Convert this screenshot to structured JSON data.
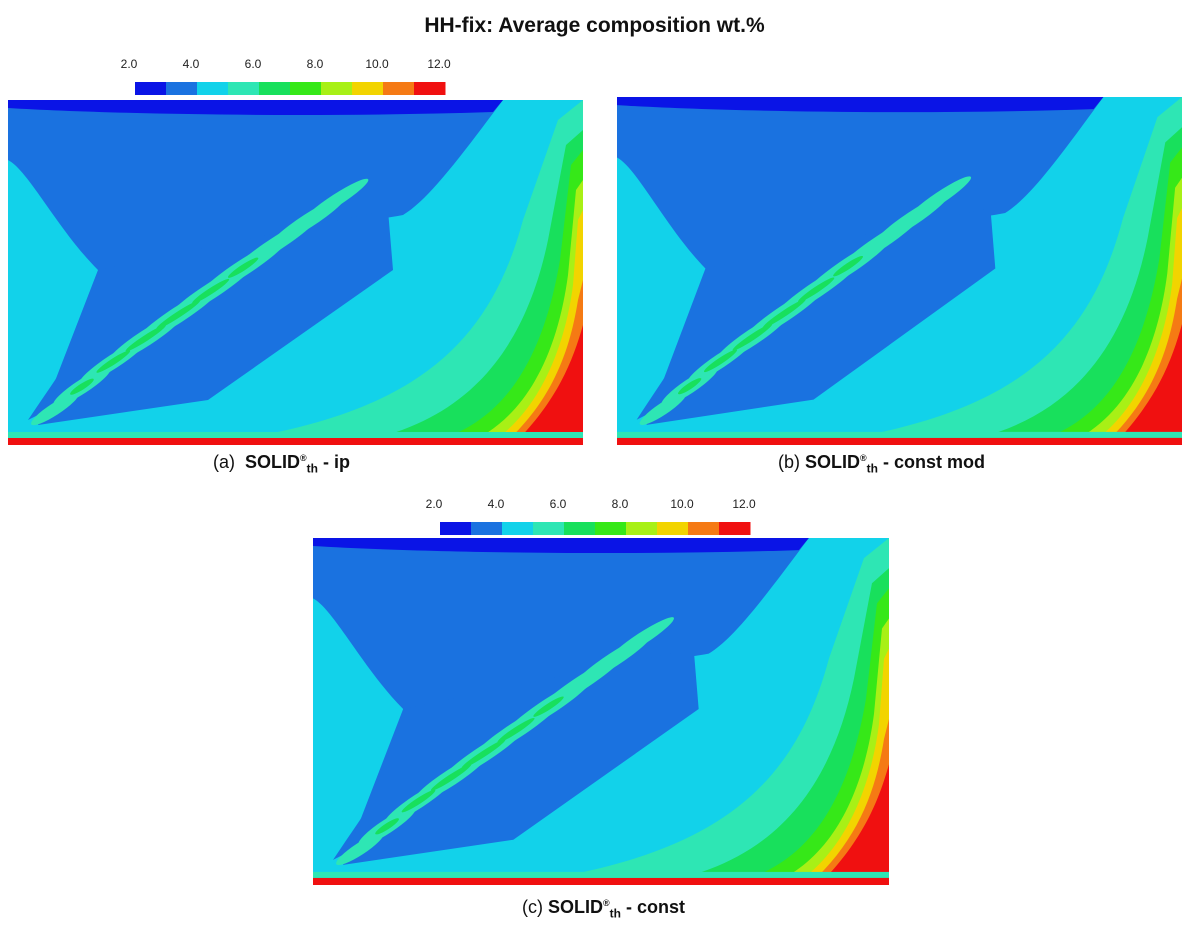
{
  "title": "HH-fix: Average composition wt.%",
  "colorbar": {
    "range": [
      2,
      12
    ],
    "ticks": [
      {
        "value": 2,
        "label": "2.0"
      },
      {
        "value": 4,
        "label": "4.0"
      },
      {
        "value": 6,
        "label": "6.0"
      },
      {
        "value": 8,
        "label": "8.0"
      },
      {
        "value": 10,
        "label": "10.0"
      },
      {
        "value": 12,
        "label": "12.0"
      }
    ],
    "colors": [
      "#0a14e6",
      "#1a72e0",
      "#12d2ea",
      "#2ee6b4",
      "#18e05c",
      "#36e818",
      "#a8f016",
      "#f2d400",
      "#f57a14",
      "#f01010"
    ]
  },
  "panels": [
    {
      "label": "(a)",
      "name": "SOLID",
      "sup": "®",
      "sub": "th",
      "rest": "- ip"
    },
    {
      "label": "(b)",
      "name": "SOLID",
      "sup": "®",
      "sub": "th",
      "rest": "- const mod"
    },
    {
      "label": "(c)",
      "name": "SOLID",
      "sup": "®",
      "sub": "th",
      "rest": "- const"
    }
  ]
}
